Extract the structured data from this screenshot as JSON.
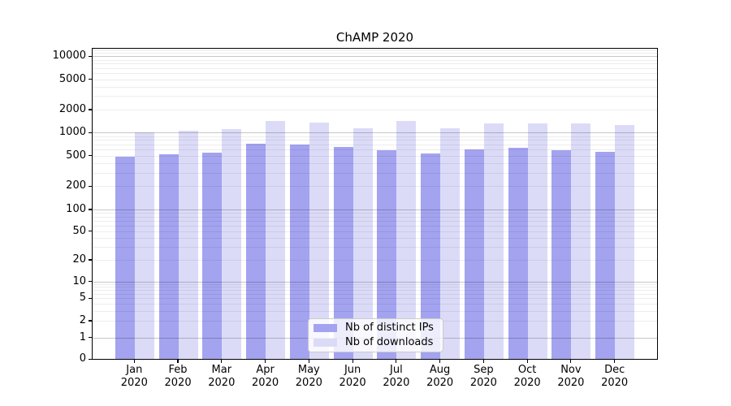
{
  "title": "ChAMP 2020",
  "legend": {
    "items": [
      {
        "label": "Nb of distinct IPs",
        "color": "#a3a3f0"
      },
      {
        "label": "Nb of downloads",
        "color": "#dbdbf8"
      }
    ]
  },
  "chart_data": {
    "type": "bar",
    "title": "ChAMP 2020",
    "categories": [
      "Jan",
      "Feb",
      "Mar",
      "Apr",
      "May",
      "Jun",
      "Jul",
      "Aug",
      "Sep",
      "Oct",
      "Nov",
      "Dec"
    ],
    "category_year": "2020",
    "series": [
      {
        "name": "Nb of distinct IPs",
        "color": "#a3a3f0",
        "values": [
          485,
          520,
          540,
          720,
          700,
          640,
          590,
          530,
          600,
          630,
          590,
          555
        ]
      },
      {
        "name": "Nb of downloads",
        "color": "#dbdbf8",
        "values": [
          1010,
          1040,
          1100,
          1400,
          1350,
          1130,
          1410,
          1120,
          1300,
          1300,
          1320,
          1240
        ]
      }
    ],
    "xlabel": "",
    "ylabel": "",
    "yscale": "symlog (linear 0-1, log decades above)",
    "ylim": [
      0,
      12600
    ],
    "yticks": [
      0,
      1,
      2,
      5,
      10,
      20,
      50,
      100,
      200,
      500,
      1000,
      2000,
      5000,
      10000
    ],
    "grid": {
      "enabled": true,
      "major_decades": [
        1,
        10,
        100,
        1000,
        10000
      ],
      "major_color": "rgba(0,0,0,0.22)",
      "minor_color": "rgba(0,0,0,0.07)"
    },
    "legend_position": "lower center (inside plot)"
  }
}
